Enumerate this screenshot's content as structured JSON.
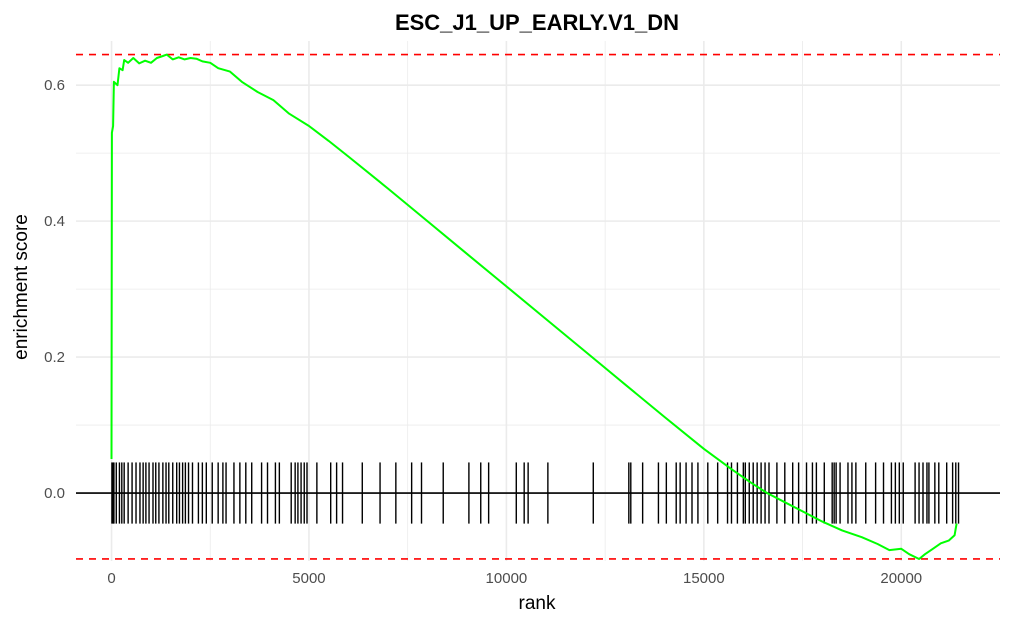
{
  "chart_data": {
    "type": "line",
    "title": "ESC_J1_UP_EARLY.V1_DN",
    "xlabel": "rank",
    "ylabel": "enrichment score",
    "xlim": [
      -900,
      22500
    ],
    "ylim": [
      -0.1,
      0.665
    ],
    "grid": true,
    "x_ticks": [
      0,
      5000,
      10000,
      15000,
      20000
    ],
    "x_tick_labels": [
      "0",
      "5000",
      "10000",
      "15000",
      "20000"
    ],
    "y_ticks": [
      0.0,
      0.2,
      0.4,
      0.6
    ],
    "y_tick_labels": [
      "0.0",
      "0.2",
      "0.4",
      "0.6"
    ],
    "colors": {
      "curve": "#00ff00",
      "threshold": "#ff0000",
      "hits": "#000000",
      "zero_line": "#000000",
      "grid": "#ebebeb"
    },
    "thresholds": {
      "max": 0.645,
      "min": -0.097
    },
    "zero_line": 0,
    "hit_band": [
      -0.045,
      0.045
    ],
    "series": [
      {
        "values": [
          [
            0,
            0.05
          ],
          [
            10,
            0.53
          ],
          [
            40,
            0.54
          ],
          [
            60,
            0.605
          ],
          [
            150,
            0.6
          ],
          [
            200,
            0.625
          ],
          [
            280,
            0.622
          ],
          [
            320,
            0.637
          ],
          [
            420,
            0.633
          ],
          [
            550,
            0.64
          ],
          [
            700,
            0.632
          ],
          [
            850,
            0.636
          ],
          [
            1000,
            0.633
          ],
          [
            1150,
            0.64
          ],
          [
            1300,
            0.643
          ],
          [
            1400,
            0.645
          ],
          [
            1550,
            0.638
          ],
          [
            1700,
            0.641
          ],
          [
            1850,
            0.638
          ],
          [
            2000,
            0.64
          ],
          [
            2150,
            0.639
          ],
          [
            2300,
            0.635
          ],
          [
            2500,
            0.633
          ],
          [
            2700,
            0.625
          ],
          [
            3000,
            0.62
          ],
          [
            3300,
            0.605
          ],
          [
            3700,
            0.59
          ],
          [
            4100,
            0.578
          ],
          [
            4500,
            0.558
          ],
          [
            5000,
            0.54
          ],
          [
            5500,
            0.518
          ],
          [
            6000,
            0.495
          ],
          [
            7000,
            0.448
          ],
          [
            8000,
            0.4
          ],
          [
            9000,
            0.352
          ],
          [
            10000,
            0.304
          ],
          [
            11000,
            0.256
          ],
          [
            12000,
            0.208
          ],
          [
            13000,
            0.16
          ],
          [
            14000,
            0.112
          ],
          [
            15000,
            0.065
          ],
          [
            15700,
            0.035
          ],
          [
            16200,
            0.015
          ],
          [
            16600,
            0.0
          ],
          [
            17000,
            -0.012
          ],
          [
            17500,
            -0.027
          ],
          [
            18000,
            -0.042
          ],
          [
            18500,
            -0.055
          ],
          [
            19000,
            -0.065
          ],
          [
            19400,
            -0.075
          ],
          [
            19700,
            -0.084
          ],
          [
            20000,
            -0.082
          ],
          [
            20200,
            -0.09
          ],
          [
            20450,
            -0.097
          ],
          [
            20600,
            -0.09
          ],
          [
            20800,
            -0.082
          ],
          [
            21000,
            -0.074
          ],
          [
            21200,
            -0.07
          ],
          [
            21350,
            -0.062
          ],
          [
            21400,
            -0.045
          ]
        ]
      }
    ],
    "hits": [
      10,
      40,
      60,
      120,
      200,
      260,
      320,
      420,
      520,
      620,
      720,
      800,
      870,
      950,
      1050,
      1120,
      1200,
      1300,
      1380,
      1450,
      1550,
      1650,
      1720,
      1800,
      1870,
      1950,
      2050,
      2200,
      2300,
      2400,
      2550,
      2700,
      2820,
      2900,
      3100,
      3250,
      3400,
      3550,
      3800,
      3950,
      4150,
      4250,
      4550,
      4650,
      4720,
      4800,
      4880,
      4950,
      5200,
      5550,
      5700,
      5850,
      6350,
      6800,
      7200,
      7600,
      7850,
      8400,
      9050,
      9350,
      9550,
      10250,
      10450,
      10550,
      11050,
      12200,
      13100,
      13150,
      13450,
      13850,
      14050,
      14300,
      14400,
      14550,
      14700,
      14850,
      15100,
      15350,
      15600,
      15700,
      15850,
      16000,
      16050,
      16150,
      16250,
      16350,
      16450,
      16550,
      16650,
      16850,
      17050,
      17250,
      17400,
      17600,
      17750,
      17850,
      18050,
      18250,
      18300,
      18350,
      18450,
      18650,
      18750,
      18850,
      19100,
      19350,
      19550,
      19750,
      19850,
      19950,
      20050,
      20350,
      20450,
      20550,
      20650,
      20700,
      20850,
      20950,
      21150,
      21300,
      21380,
      21450
    ]
  }
}
